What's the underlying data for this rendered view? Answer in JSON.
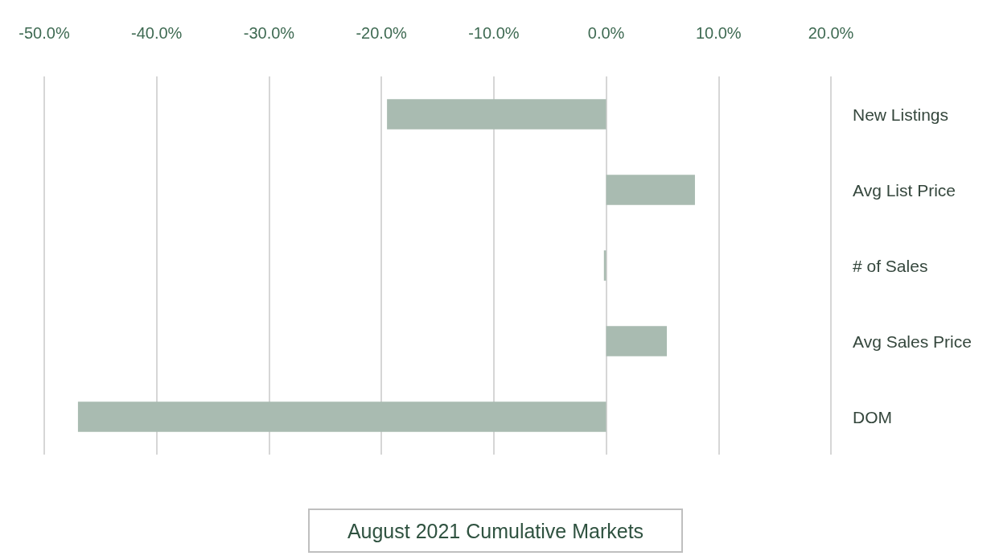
{
  "chart_data": {
    "type": "bar",
    "orientation": "horizontal",
    "title": "August 2021 Cumulative Markets",
    "categories": [
      "New Listings",
      "Avg List Price",
      "# of Sales",
      "Avg Sales Price",
      "DOM"
    ],
    "values": [
      -19.5,
      7.9,
      -0.2,
      5.4,
      -47.0
    ],
    "color": "#a9bbb1",
    "xlim": [
      -50,
      20
    ],
    "xticks": [
      {
        "value": -50,
        "label": "-50.0%"
      },
      {
        "value": -40,
        "label": "-40.0%"
      },
      {
        "value": -30,
        "label": "-30.0%"
      },
      {
        "value": -20,
        "label": "-20.0%"
      },
      {
        "value": -10,
        "label": "-10.0%"
      },
      {
        "value": 0,
        "label": "0.0%"
      },
      {
        "value": 10,
        "label": "10.0%"
      },
      {
        "value": 20,
        "label": "20.0%"
      }
    ],
    "grid": "x"
  }
}
